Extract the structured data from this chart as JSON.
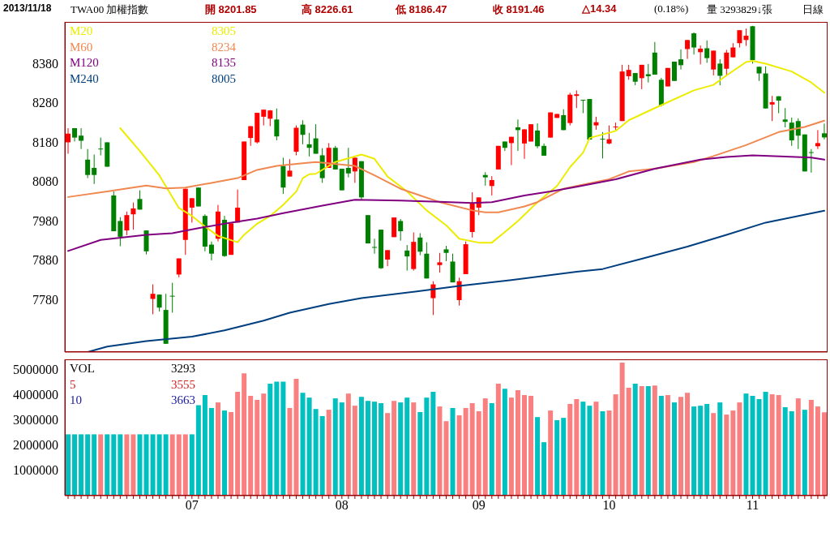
{
  "chart_data": [
    {
      "type": "candlestick",
      "title": "TWA00 加權指數",
      "subtitle": "2013/11/18",
      "categories": [
        null,
        null,
        null,
        null,
        null,
        null,
        null,
        null,
        null,
        null,
        null,
        null,
        null,
        null,
        null,
        null,
        null,
        null,
        null,
        null,
        null,
        null,
        null,
        null,
        null,
        null,
        null,
        null,
        null,
        null,
        null,
        null,
        null,
        null,
        null,
        null,
        null,
        null,
        null,
        null,
        null,
        null,
        null,
        null,
        null,
        null,
        null,
        null,
        null,
        null,
        null,
        null,
        null,
        null,
        null,
        null,
        null,
        null,
        null,
        null,
        null,
        null,
        null,
        null,
        null,
        null,
        null,
        null,
        null,
        null,
        null,
        null,
        null,
        null,
        null,
        null,
        null,
        null,
        null,
        null,
        null,
        null,
        null,
        null,
        null,
        null,
        null,
        null,
        null,
        null,
        null,
        null,
        null,
        null,
        null,
        null,
        null,
        null,
        null,
        null,
        null,
        null,
        null,
        null,
        null,
        null,
        null,
        null,
        null,
        null,
        null,
        null,
        null,
        null,
        null,
        null,
        null
      ],
      "ohlc": [
        [
          8179,
          8215,
          8150,
          8201
        ],
        [
          8215,
          8215,
          8181,
          8191
        ],
        [
          8196,
          8215,
          8162,
          8183
        ],
        [
          8135,
          8162,
          8088,
          8096
        ],
        [
          8114,
          8148,
          8073,
          8096
        ],
        [
          8163,
          8191,
          8146,
          8162
        ],
        [
          8179,
          8179,
          8117,
          8117
        ],
        [
          8044,
          8054,
          7953,
          7953
        ],
        [
          7979,
          7989,
          7915,
          7939
        ],
        [
          7955,
          8003,
          7943,
          7994
        ],
        [
          7996,
          8026,
          7957,
          8011
        ],
        [
          8035,
          8057,
          8008,
          8008
        ],
        [
          7955,
          7955,
          7894,
          7902
        ],
        [
          7781,
          7818,
          7742,
          7794
        ],
        [
          7792,
          7792,
          7749,
          7759
        ],
        [
          7753,
          7794,
          7667,
          7667
        ],
        [
          7789,
          7822,
          7746,
          7788
        ],
        [
          7843,
          7884,
          7836,
          7884
        ],
        [
          7931,
          8061,
          7893,
          8061
        ],
        [
          8013,
          8037,
          7975,
          8037
        ],
        [
          8064,
          8064,
          8016,
          8016
        ],
        [
          7992,
          7996,
          7902,
          7914
        ],
        [
          7919,
          7927,
          7879,
          7896
        ],
        [
          7934,
          8020,
          7927,
          8003
        ],
        [
          7982,
          7992,
          7888,
          7890
        ],
        [
          7893,
          7973,
          7893,
          7973
        ],
        [
          7975,
          8059,
          7975,
          8013
        ],
        [
          8083,
          8181,
          8083,
          8181
        ],
        [
          8190,
          8220,
          8170,
          8220
        ],
        [
          8179,
          8254,
          8176,
          8254
        ],
        [
          8244,
          8262,
          8222,
          8262
        ],
        [
          8239,
          8261,
          8220,
          8260
        ],
        [
          8237,
          8265,
          8184,
          8194
        ],
        [
          8119,
          8140,
          8048,
          8064
        ],
        [
          8092,
          8136,
          8092,
          8107
        ],
        [
          8155,
          8222,
          8146,
          8216
        ],
        [
          8224,
          8235,
          8174,
          8198
        ],
        [
          8174,
          8203,
          8143,
          8165
        ],
        [
          8189,
          8225,
          8150,
          8150
        ],
        [
          8146,
          8164,
          8076,
          8088
        ],
        [
          8114,
          8177,
          8114,
          8165
        ],
        [
          8165,
          8170,
          8110,
          8110
        ],
        [
          8112,
          8112,
          8057,
          8057
        ],
        [
          8114,
          8165,
          8090,
          8100
        ],
        [
          8105,
          8140,
          8076,
          8140
        ],
        [
          8131,
          8131,
          8033,
          8039
        ],
        [
          7994,
          7994,
          7922,
          7922
        ],
        [
          7913,
          7934,
          7896,
          7912
        ],
        [
          7957,
          7957,
          7857,
          7859
        ],
        [
          7881,
          7905,
          7864,
          7905
        ],
        [
          7938,
          7988,
          7938,
          7988
        ],
        [
          7979,
          7984,
          7929,
          7953
        ],
        [
          7904,
          7918,
          7853,
          7889
        ],
        [
          7857,
          7950,
          7853,
          7926
        ],
        [
          7937,
          7948,
          7892,
          7901
        ],
        [
          7896,
          7925,
          7833,
          7833
        ],
        [
          7783,
          7826,
          7740,
          7818
        ],
        [
          7867,
          7898,
          7848,
          7874
        ],
        [
          7907,
          7916,
          7877,
          7898
        ],
        [
          7876,
          7896,
          7823,
          7823
        ],
        [
          7778,
          7835,
          7764,
          7826
        ],
        [
          7844,
          7927,
          7844,
          7920
        ],
        [
          7951,
          8052,
          7937,
          8024
        ],
        [
          8013,
          8039,
          7994,
          8039
        ],
        [
          8096,
          8103,
          8069,
          8090
        ],
        [
          8068,
          8093,
          8044,
          8083
        ],
        [
          8110,
          8170,
          8110,
          8170
        ],
        [
          8181,
          8181,
          8157,
          8165
        ],
        [
          8177,
          8193,
          8121,
          8193
        ],
        [
          8217,
          8237,
          8157,
          8210
        ],
        [
          8176,
          8212,
          8137,
          8212
        ],
        [
          8181,
          8225,
          8181,
          8225
        ],
        [
          8209,
          8227,
          8164,
          8169
        ],
        [
          8170,
          8176,
          8145,
          8145
        ],
        [
          8191,
          8255,
          8191,
          8255
        ],
        [
          8241,
          8251,
          8241,
          8251
        ],
        [
          8248,
          8263,
          8210,
          8210
        ],
        [
          8228,
          8305,
          8222,
          8300
        ],
        [
          8297,
          8311,
          8266,
          8301
        ],
        [
          8287,
          8287,
          8253,
          8285
        ],
        [
          8289,
          8289,
          8186,
          8186
        ],
        [
          8222,
          8244,
          8211,
          8230
        ],
        [
          8188,
          8205,
          8138,
          8187
        ],
        [
          8176,
          8222,
          8174,
          8187
        ],
        [
          8218,
          8229,
          8211,
          8219
        ],
        [
          8233,
          8376,
          8233,
          8359
        ],
        [
          8347,
          8376,
          8338,
          8363
        ],
        [
          8355,
          8355,
          8324,
          8333
        ],
        [
          8342,
          8376,
          8314,
          8376
        ],
        [
          8352,
          8378,
          8331,
          8347
        ],
        [
          8407,
          8434,
          8351,
          8351
        ],
        [
          8338,
          8343,
          8270,
          8273
        ],
        [
          8321,
          8368,
          8321,
          8368
        ],
        [
          8384,
          8384,
          8335,
          8335
        ],
        [
          8390,
          8415,
          8364,
          8375
        ],
        [
          8416,
          8439,
          8391,
          8439
        ],
        [
          8456,
          8458,
          8402,
          8420
        ],
        [
          8408,
          8425,
          8377,
          8417
        ],
        [
          8418,
          8438,
          8381,
          8393
        ],
        [
          8364,
          8412,
          8349,
          8412
        ],
        [
          8379,
          8390,
          8324,
          8348
        ],
        [
          8366,
          8414,
          8349,
          8407
        ],
        [
          8395,
          8431,
          8395,
          8420
        ],
        [
          8431,
          8464,
          8420,
          8464
        ],
        [
          8439,
          8468,
          8424,
          8450
        ],
        [
          8474,
          8475,
          8379,
          8388
        ],
        [
          8371,
          8371,
          8335,
          8354
        ],
        [
          8354,
          8372,
          8265,
          8265
        ],
        [
          8275,
          8297,
          8233,
          8281
        ],
        [
          8296,
          8296,
          8253,
          8285
        ],
        [
          8237,
          8266,
          8217,
          8231
        ],
        [
          8229,
          8242,
          8170,
          8184
        ],
        [
          8233,
          8240,
          8162,
          8196
        ],
        [
          8199,
          8199,
          8105,
          8105
        ],
        [
          8154,
          8162,
          8102,
          8153
        ],
        [
          8169,
          8210,
          8162,
          8177
        ],
        [
          8201.85,
          8226.61,
          8186.47,
          8191.46
        ]
      ],
      "colors": [
        "#ff0000",
        "#008000",
        "#008000",
        "#008000",
        "#008000",
        "#008000",
        "#008000",
        "#008000",
        "#008000",
        "#ff0000",
        "#ff0000",
        "#008000",
        "#008000",
        "#ff0000",
        "#008000",
        "#008000",
        "#008000",
        "#ff0000",
        "#ff0000",
        "#ff0000",
        "#008000",
        "#008000",
        "#008000",
        "#ff0000",
        "#008000",
        "#ff0000",
        "#ff0000",
        "#ff0000",
        "#ff0000",
        "#ff0000",
        "#ff0000",
        "#ff0000",
        "#008000",
        "#008000",
        "#ff0000",
        "#ff0000",
        "#008000",
        "#008000",
        "#008000",
        "#008000",
        "#ff0000",
        "#008000",
        "#008000",
        "#008000",
        "#ff0000",
        "#008000",
        "#008000",
        "#008000",
        "#008000",
        "#ff0000",
        "#ff0000",
        "#008000",
        "#008000",
        "#ff0000",
        "#008000",
        "#008000",
        "#ff0000",
        "#ff0000",
        "#008000",
        "#008000",
        "#ff0000",
        "#ff0000",
        "#ff0000",
        "#ff0000",
        "#008000",
        "#ff0000",
        "#ff0000",
        "#008000",
        "#ff0000",
        "#008000",
        "#ff0000",
        "#ff0000",
        "#008000",
        "#008000",
        "#ff0000",
        "#ff0000",
        "#008000",
        "#ff0000",
        "#ff0000",
        "#008000",
        "#008000",
        "#ff0000",
        "#008000",
        "#ff0000",
        "#ff0000",
        "#ff0000",
        "#ff0000",
        "#008000",
        "#ff0000",
        "#008000",
        "#008000",
        "#008000",
        "#ff0000",
        "#008000",
        "#008000",
        "#ff0000",
        "#008000",
        "#ff0000",
        "#008000",
        "#ff0000",
        "#008000",
        "#ff0000",
        "#ff0000",
        "#ff0000",
        "#ff0000",
        "#008000",
        "#008000",
        "#008000",
        "#ff0000",
        "#008000",
        "#008000",
        "#008000",
        "#008000",
        "#008000",
        "#008000",
        "#ff0000",
        "#008000"
      ],
      "series": [
        {
          "name": "M20",
          "type": "line",
          "color": "#ecec00",
          "values": [
            null,
            null,
            null,
            null,
            null,
            null,
            null,
            null,
            8215,
            null,
            null,
            8157,
            null,
            null,
            8095,
            null,
            null,
            8012,
            null,
            7992,
            null,
            7965,
            null,
            7941,
            null,
            null,
            7925,
            7944,
            null,
            7972,
            null,
            7992,
            null,
            8020,
            null,
            8054,
            8088,
            8098,
            8099,
            null,
            null,
            8129,
            null,
            null,
            null,
            8148,
            null,
            8137,
            null,
            8092,
            null,
            null,
            8054,
            null,
            null,
            8006,
            null,
            null,
            7968,
            null,
            7934,
            null,
            null,
            7924,
            null,
            7924,
            null,
            7951,
            null,
            7979,
            null,
            null,
            8027,
            null,
            null,
            8068,
            null,
            8116,
            null,
            8153,
            8190,
            null,
            null,
            null,
            8208,
            null,
            8235,
            null,
            null,
            null,
            8266,
            null,
            null,
            null,
            null,
            null,
            8311,
            null,
            null,
            8325,
            null,
            8349,
            null,
            null,
            8383,
            8386,
            null,
            8379,
            null,
            null,
            null,
            8359,
            null,
            null,
            8331,
            null,
            8305
          ]
        },
        {
          "name": "M60",
          "type": "line",
          "color": "#f08850",
          "values": [
            8040,
            null,
            null,
            null,
            null,
            null,
            8054,
            null,
            null,
            null,
            null,
            null,
            8069,
            null,
            null,
            8062,
            null,
            null,
            8064,
            null,
            null,
            null,
            8076,
            null,
            null,
            null,
            8088,
            null,
            null,
            8109,
            null,
            null,
            8119,
            null,
            null,
            null,
            8126,
            null,
            8129,
            null,
            null,
            null,
            null,
            null,
            8119,
            null,
            null,
            8095,
            null,
            null,
            null,
            8061,
            null,
            null,
            8044,
            null,
            null,
            8027,
            null,
            null,
            null,
            null,
            8006,
            null,
            8001,
            null,
            8001,
            null,
            null,
            null,
            8016,
            null,
            8027,
            null,
            null,
            null,
            8061,
            null,
            8068,
            null,
            null,
            null,
            null,
            8085,
            null,
            null,
            8105,
            null,
            null,
            null,
            8112,
            null,
            null,
            null,
            null,
            null,
            8129,
            null,
            null,
            8144,
            null,
            null,
            null,
            null,
            8172,
            null,
            null,
            null,
            null,
            8205,
            null,
            null,
            null,
            8218,
            null,
            null,
            8234
          ]
        },
        {
          "name": "M120",
          "type": "line",
          "color": "#800080",
          "values": [
            7903,
            null,
            null,
            null,
            null,
            7931,
            null,
            null,
            null,
            null,
            null,
            null,
            7944,
            null,
            null,
            null,
            7948,
            null,
            null,
            null,
            7961,
            null,
            null,
            null,
            7972,
            null,
            null,
            null,
            null,
            7985,
            null,
            null,
            null,
            7999,
            null,
            null,
            null,
            null,
            null,
            8018,
            null,
            null,
            null,
            null,
            8033,
            null,
            null,
            null,
            null,
            null,
            null,
            8031,
            null,
            null,
            null,
            null,
            null,
            8028,
            null,
            null,
            null,
            null,
            8025,
            null,
            null,
            8027,
            null,
            null,
            null,
            null,
            8044,
            null,
            null,
            null,
            8054,
            null,
            null,
            null,
            8066,
            null,
            null,
            null,
            null,
            null,
            8085,
            null,
            null,
            null,
            null,
            null,
            8112,
            null,
            null,
            null,
            null,
            null,
            null,
            8135,
            null,
            null,
            null,
            8142,
            null,
            null,
            null,
            8146,
            null,
            null,
            null,
            null,
            8143,
            null,
            null,
            null,
            8140,
            null,
            8135
          ]
        },
        {
          "name": "M240",
          "type": "line",
          "color": "#003f7f",
          "values": [
            null,
            null,
            null,
            7646,
            null,
            null,
            7660,
            null,
            null,
            null,
            null,
            null,
            7674,
            null,
            null,
            null,
            null,
            null,
            null,
            7685,
            null,
            null,
            null,
            null,
            7701,
            null,
            null,
            null,
            null,
            null,
            7726,
            null,
            null,
            null,
            7746,
            null,
            null,
            null,
            null,
            null,
            7768,
            null,
            null,
            null,
            null,
            7783,
            null,
            null,
            null,
            null,
            null,
            null,
            null,
            7799,
            null,
            null,
            null,
            null,
            null,
            null,
            7814,
            null,
            null,
            null,
            null,
            null,
            null,
            null,
            7829,
            null,
            null,
            null,
            null,
            null,
            null,
            null,
            null,
            null,
            7850,
            null,
            null,
            null,
            7857,
            null,
            null,
            null,
            null,
            null,
            7883,
            null,
            null,
            null,
            null,
            null,
            null,
            7914,
            null,
            null,
            null,
            null,
            null,
            7944,
            null,
            null,
            null,
            null,
            null,
            7975,
            null,
            null,
            null,
            null,
            null,
            null,
            null,
            null,
            8005
          ]
        }
      ],
      "ylim": [
        7646,
        8485
      ],
      "yticks": [
        7780,
        7880,
        7980,
        8080,
        8180,
        8280,
        8380
      ],
      "tick_labels": "y",
      "legend": "top left",
      "annotations": [
        "開 8201.85",
        "高 8226.61",
        "低 8186.47",
        "收 8191.46",
        "△14.34",
        "(0.18%)",
        "量 3293829↓張",
        "日線",
        "8305",
        "8234",
        "8135",
        "8005"
      ]
    },
    {
      "type": "bar",
      "categories": [
        null,
        null,
        null,
        null,
        null,
        null,
        null,
        null,
        null,
        null,
        null,
        null,
        null,
        null,
        null,
        null,
        null,
        null,
        null,
        "07",
        null,
        null,
        null,
        null,
        null,
        null,
        null,
        null,
        null,
        null,
        null,
        null,
        null,
        null,
        null,
        null,
        null,
        null,
        null,
        null,
        null,
        null,
        "08",
        null,
        null,
        null,
        null,
        null,
        null,
        null,
        null,
        null,
        null,
        null,
        null,
        null,
        null,
        null,
        null,
        null,
        null,
        null,
        null,
        "09",
        null,
        null,
        null,
        null,
        null,
        null,
        null,
        null,
        null,
        null,
        null,
        null,
        null,
        null,
        null,
        null,
        null,
        null,
        null,
        "10",
        null,
        null,
        null,
        null,
        null,
        null,
        null,
        null,
        null,
        null,
        null,
        null,
        null,
        null,
        null,
        null,
        null,
        null,
        null,
        null,
        null,
        "11",
        null,
        null,
        null,
        null,
        null,
        null,
        null,
        null,
        null,
        null,
        null
      ],
      "series": [
        {
          "name": "VOL",
          "values": [
            2420000,
            2420000,
            2420000,
            2420000,
            2420000,
            2420000,
            2420000,
            2420000,
            2420000,
            2420000,
            2420000,
            2420000,
            2420000,
            2420000,
            2420000,
            2420000,
            2420000,
            2420000,
            2420000,
            2420000,
            3570000,
            3970000,
            3460000,
            3680000,
            3360000,
            3300000,
            4100000,
            4830000,
            3940000,
            3780000,
            4030000,
            4420000,
            4500000,
            4500000,
            3460000,
            4610000,
            4060000,
            3870000,
            3420000,
            3140000,
            3390000,
            3840000,
            3680000,
            4030000,
            3550000,
            3900000,
            3740000,
            3710000,
            3650000,
            3260000,
            3740000,
            3680000,
            3870000,
            3680000,
            3300000,
            3870000,
            4100000,
            3520000,
            2940000,
            3460000,
            3170000,
            3460000,
            3650000,
            3330000,
            3840000,
            3650000,
            4420000,
            4220000,
            3870000,
            4160000,
            3970000,
            3940000,
            3100000,
            2110000,
            3360000,
            2980000,
            3070000,
            3620000,
            3810000,
            3710000,
            3550000,
            3710000,
            3330000,
            3360000,
            4000000,
            5250000,
            4260000,
            4420000,
            4320000,
            4320000,
            4350000,
            3940000,
            3970000,
            3680000,
            3900000,
            4060000,
            3520000,
            3550000,
            3620000,
            3260000,
            3680000,
            3200000,
            3360000,
            3680000,
            4030000,
            3940000,
            3810000,
            4100000,
            4000000,
            3970000,
            3490000,
            3330000,
            3840000,
            3390000,
            3780000,
            3520000,
            3290000
          ]
        }
      ],
      "colors": [
        "#00c0c0",
        "#00c0c0",
        "#00c0c0",
        "#00c0c0",
        "#00c0c0",
        "#f88080",
        "#00c0c0",
        "#00c0c0",
        "#00c0c0",
        "#f88080",
        "#f88080",
        "#00c0c0",
        "#00c0c0",
        "#00c0c0",
        "#00c0c0",
        "#00c0c0",
        "#f88080",
        "#f88080",
        "#f88080",
        "#00c0c0",
        "#00c0c0",
        "#00c0c0",
        "#00c0c0",
        "#f88080",
        "#00c0c0",
        "#f88080",
        "#f88080",
        "#f88080",
        "#f88080",
        "#f88080",
        "#f88080",
        "#00c0c0",
        "#00c0c0",
        "#00c0c0",
        "#f88080",
        "#f88080",
        "#00c0c0",
        "#00c0c0",
        "#00c0c0",
        "#00c0c0",
        "#f88080",
        "#00c0c0",
        "#00c0c0",
        "#f88080",
        "#f88080",
        "#00c0c0",
        "#00c0c0",
        "#00c0c0",
        "#00c0c0",
        "#f88080",
        "#f88080",
        "#00c0c0",
        "#00c0c0",
        "#f88080",
        "#00c0c0",
        "#00c0c0",
        "#00c0c0",
        "#f88080",
        "#f88080",
        "#00c0c0",
        "#f88080",
        "#f88080",
        "#f88080",
        "#f88080",
        "#f88080",
        "#00c0c0",
        "#f88080",
        "#00c0c0",
        "#f88080",
        "#f88080",
        "#f88080",
        "#f88080",
        "#00c0c0",
        "#00c0c0",
        "#f88080",
        "#00c0c0",
        "#00c0c0",
        "#f88080",
        "#f88080",
        "#00c0c0",
        "#00c0c0",
        "#f88080",
        "#00c0c0",
        "#f88080",
        "#f88080",
        "#f88080",
        "#f88080",
        "#00c0c0",
        "#f88080",
        "#00c0c0",
        "#f88080",
        "#00c0c0",
        "#f88080",
        "#00c0c0",
        "#f88080",
        "#f88080",
        "#00c0c0",
        "#00c0c0",
        "#00c0c0",
        "#f88080",
        "#00c0c0",
        "#f88080",
        "#f88080",
        "#f88080",
        "#00c0c0",
        "#00c0c0",
        "#00c0c0",
        "#00c0c0",
        "#f88080",
        "#f88080",
        "#00c0c0",
        "#00c0c0",
        "#f88080",
        "#00c0c0",
        "#f88080",
        "#f88080",
        "#f88080"
      ],
      "ylim": [
        0,
        5380000
      ],
      "yticks": [
        1000000,
        2000000,
        3000000,
        4000000,
        5000000
      ],
      "legend": "top left",
      "annotations": [
        "3293",
        "5",
        "3555",
        "10",
        "3663"
      ]
    }
  ]
}
